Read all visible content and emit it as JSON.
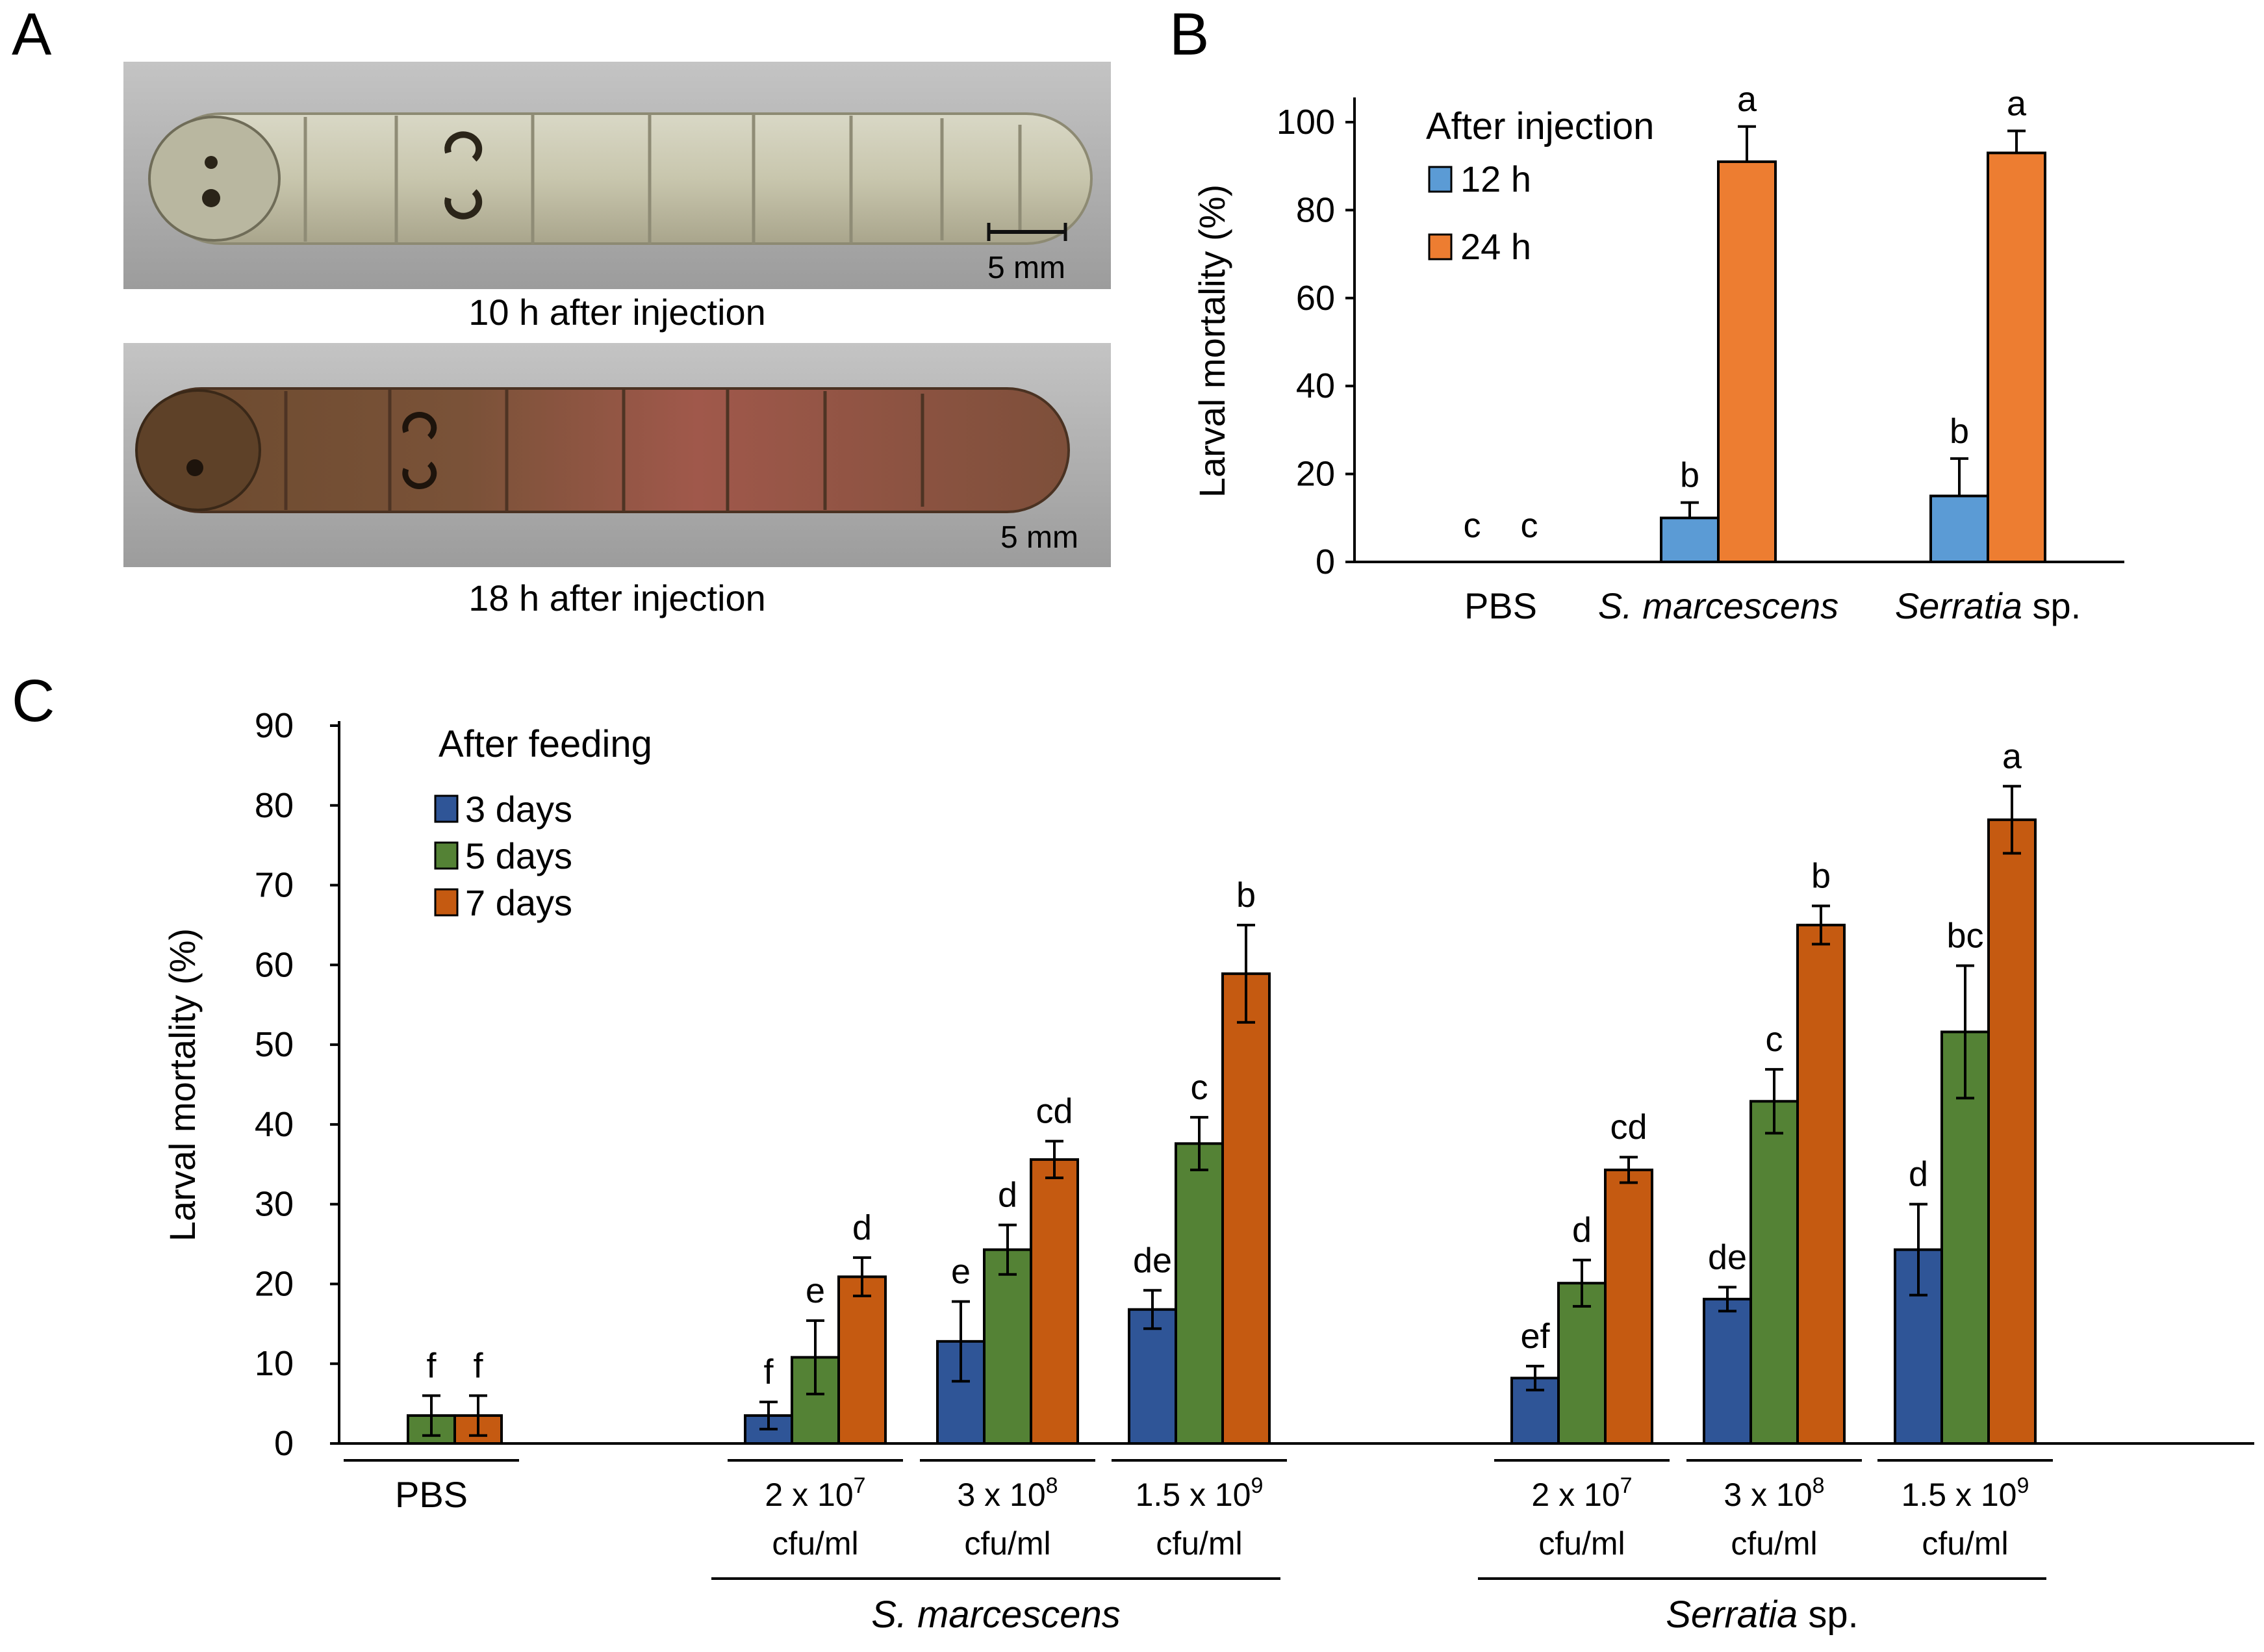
{
  "panel_labels": {
    "a": "A",
    "b": "B",
    "c": "C"
  },
  "panel_a": {
    "photos": [
      {
        "caption": "10 h after injection",
        "scale_label": "5 mm",
        "tint": "#c9c7b3"
      },
      {
        "caption": "18 h after injection",
        "scale_label": "5 mm",
        "tint": "#8a5a40"
      }
    ]
  },
  "chart_data": [
    {
      "type": "bar",
      "panel": "B",
      "categories": [
        "PBS",
        "S. marcescens",
        "Serratia sp."
      ],
      "category_italic": [
        [
          {
            "text": "PBS",
            "italic": false
          }
        ],
        [
          {
            "text": "S. marcescens",
            "italic": true
          }
        ],
        [
          {
            "text": "Serratia",
            "italic": true
          },
          {
            "text": " sp.",
            "italic": false
          }
        ]
      ],
      "series": [
        {
          "name": "12 h",
          "color": "#5b9bd5",
          "values": [
            0,
            10,
            15
          ],
          "errors": [
            0,
            3.5,
            8.5
          ],
          "letters": [
            "c",
            "b",
            "b"
          ]
        },
        {
          "name": "24 h",
          "color": "#ed7d31",
          "values": [
            0,
            91,
            93
          ],
          "errors": [
            0,
            8,
            5
          ],
          "letters": [
            "c",
            "a",
            "a"
          ]
        }
      ],
      "legend_title": "After injection",
      "ylabel": "Larval mortality (%)",
      "xlabel": "",
      "ylim": [
        0,
        100
      ],
      "yticks": [
        0,
        20,
        40,
        60,
        80,
        100
      ],
      "legend_position": "top-left",
      "grid": false
    },
    {
      "type": "bar",
      "panel": "C",
      "categories": [
        "PBS",
        "2 x 10^7 cfu/ml",
        "3 x 10^8 cfu/ml",
        "1.5 x 10^9 cfu/ml",
        "2 x 10^7 cfu/ml",
        "3 x 10^8 cfu/ml",
        "1.5 x 10^9 cfu/ml"
      ],
      "dose_labels": [
        {
          "base": "PBS",
          "sup": "",
          "unit": ""
        },
        {
          "base": "2 x 10",
          "sup": "7",
          "unit": "cfu/ml"
        },
        {
          "base": "3 x 10",
          "sup": "8",
          "unit": "cfu/ml"
        },
        {
          "base": "1.5 x 10",
          "sup": "9",
          "unit": "cfu/ml"
        },
        {
          "base": "2 x 10",
          "sup": "7",
          "unit": "cfu/ml"
        },
        {
          "base": "3 x 10",
          "sup": "8",
          "unit": "cfu/ml"
        },
        {
          "base": "1.5 x 10",
          "sup": "9",
          "unit": "cfu/ml"
        }
      ],
      "groups": [
        {
          "parts": [
            {
              "text": "S. marcescens",
              "italic": true
            }
          ],
          "from": 1,
          "to": 3
        },
        {
          "parts": [
            {
              "text": "Serratia",
              "italic": true
            },
            {
              "text": " sp.",
              "italic": false
            }
          ],
          "from": 4,
          "to": 6
        }
      ],
      "series": [
        {
          "name": "3 days",
          "color": "#2f5597",
          "values": [
            0,
            3.5,
            12.8,
            16.8,
            8.2,
            18.1,
            24.3
          ],
          "errors": [
            0,
            1.7,
            5,
            2.4,
            1.5,
            1.5,
            5.7
          ],
          "letters": [
            "",
            "f",
            "e",
            "de",
            "ef",
            "de",
            "d"
          ]
        },
        {
          "name": "5 days",
          "color": "#548235",
          "values": [
            3.5,
            10.8,
            24.3,
            37.6,
            20.1,
            42.9,
            51.6
          ],
          "errors": [
            2.5,
            4.6,
            3.1,
            3.3,
            2.9,
            4,
            8.3
          ],
          "letters": [
            "f",
            "e",
            "d",
            "c",
            "d",
            "c",
            "bc"
          ]
        },
        {
          "name": "7 days",
          "color": "#c55a11",
          "values": [
            3.5,
            20.9,
            35.6,
            58.9,
            34.3,
            65,
            78.2
          ],
          "errors": [
            2.5,
            2.4,
            2.3,
            6.1,
            1.6,
            2.4,
            4.2
          ],
          "letters": [
            "f",
            "d",
            "cd",
            "b",
            "cd",
            "b",
            "a"
          ]
        }
      ],
      "legend_title": "After feeding",
      "ylabel": "Larval mortality (%)",
      "xlabel": "",
      "ylim": [
        0,
        90
      ],
      "yticks": [
        0,
        10,
        20,
        30,
        40,
        50,
        60,
        70,
        80,
        90
      ],
      "legend_position": "top-left",
      "grid": false
    }
  ]
}
